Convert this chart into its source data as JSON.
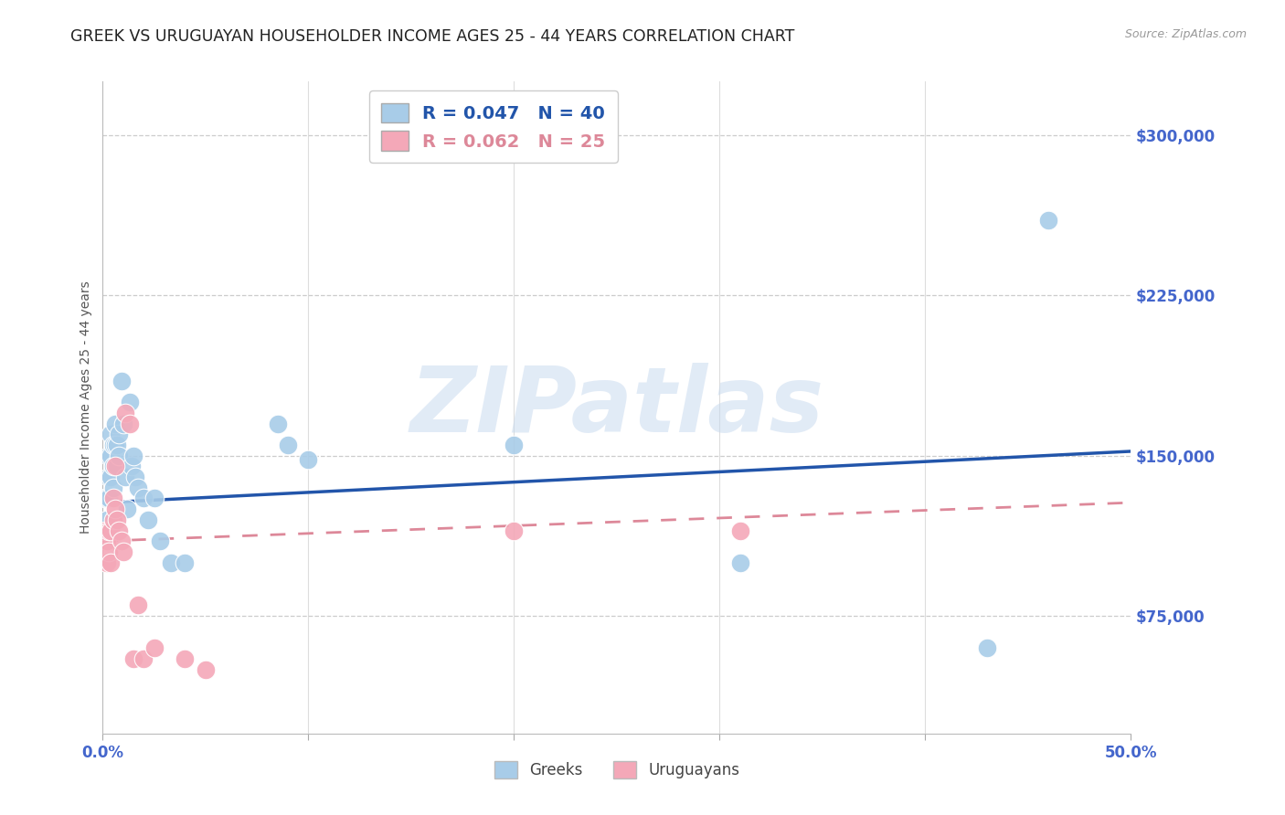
{
  "title": "GREEK VS URUGUAYAN HOUSEHOLDER INCOME AGES 25 - 44 YEARS CORRELATION CHART",
  "source": "Source: ZipAtlas.com",
  "ylabel": "Householder Income Ages 25 - 44 years",
  "watermark": "ZIPatlas",
  "xlim": [
    0.0,
    0.5
  ],
  "ylim": [
    20000,
    325000
  ],
  "yticks": [
    75000,
    150000,
    225000,
    300000
  ],
  "ytick_labels": [
    "$75,000",
    "$150,000",
    "$225,000",
    "$300,000"
  ],
  "xticks": [
    0.0,
    0.1,
    0.2,
    0.3,
    0.4,
    0.5
  ],
  "xtick_labels": [
    "0.0%",
    "",
    "",
    "",
    "",
    "50.0%"
  ],
  "greek_color": "#A8CCE8",
  "uruguayan_color": "#F4A8B8",
  "trend_blue": "#2255AA",
  "trend_pink": "#DD8899",
  "greek_x": [
    0.001,
    0.002,
    0.002,
    0.003,
    0.003,
    0.003,
    0.004,
    0.004,
    0.004,
    0.005,
    0.005,
    0.005,
    0.006,
    0.006,
    0.007,
    0.007,
    0.008,
    0.008,
    0.009,
    0.01,
    0.011,
    0.012,
    0.013,
    0.014,
    0.015,
    0.016,
    0.017,
    0.02,
    0.022,
    0.025,
    0.028,
    0.033,
    0.04,
    0.085,
    0.09,
    0.1,
    0.2,
    0.31,
    0.43,
    0.46
  ],
  "greek_y": [
    130000,
    130000,
    120000,
    150000,
    140000,
    130000,
    160000,
    150000,
    140000,
    155000,
    145000,
    135000,
    165000,
    155000,
    155000,
    145000,
    160000,
    150000,
    185000,
    165000,
    140000,
    125000,
    175000,
    145000,
    150000,
    140000,
    135000,
    130000,
    120000,
    130000,
    110000,
    100000,
    100000,
    165000,
    155000,
    148000,
    155000,
    100000,
    60000,
    260000
  ],
  "uruguayan_x": [
    0.001,
    0.002,
    0.002,
    0.003,
    0.003,
    0.004,
    0.004,
    0.005,
    0.005,
    0.006,
    0.006,
    0.007,
    0.008,
    0.009,
    0.01,
    0.011,
    0.013,
    0.015,
    0.017,
    0.02,
    0.025,
    0.04,
    0.05,
    0.2,
    0.31
  ],
  "uruguayan_y": [
    115000,
    110000,
    100000,
    115000,
    105000,
    115000,
    100000,
    130000,
    120000,
    145000,
    125000,
    120000,
    115000,
    110000,
    105000,
    170000,
    165000,
    55000,
    80000,
    55000,
    60000,
    55000,
    50000,
    115000,
    115000
  ]
}
